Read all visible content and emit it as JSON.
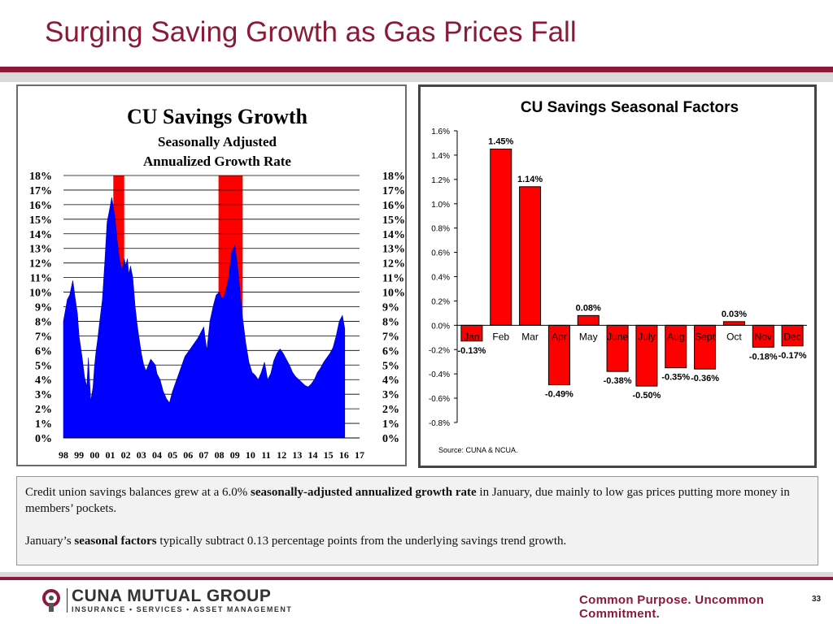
{
  "slide": {
    "title": "Surging Saving Growth as Gas Prices Fall",
    "page_number": "33",
    "tagline": "Common Purpose. Uncommon Commitment.",
    "logo": {
      "name": "CUNA MUTUAL GROUP",
      "sub": "INSURANCE  •  SERVICES  •  ASSET MANAGEMENT"
    },
    "text_box": {
      "p1_before": "Credit union savings balances grew at a 6.0% ",
      "p1_bold": "seasonally-adjusted annualized growth rate",
      "p1_after": " in January, due mainly to low gas prices putting more money in members’ pockets.",
      "p2_before": "January’s ",
      "p2_bold": "seasonal factors",
      "p2_after": " typically subtract 0.13 percentage points from the underlying savings trend growth."
    },
    "colors": {
      "accent": "#8b1a38",
      "area_fill": "#0000ff",
      "recession_fill": "#ff0000",
      "bar_fill": "#ff0000"
    }
  },
  "chart_data": [
    {
      "type": "area",
      "title": "CU Savings Growth",
      "subtitle_lines": [
        "Seasonally Adjusted",
        "Annualized Growth Rate"
      ],
      "x_tick_labels": [
        "98",
        "99",
        "00",
        "01",
        "02",
        "03",
        "04",
        "05",
        "06",
        "07",
        "08",
        "09",
        "10",
        "11",
        "12",
        "13",
        "14",
        "15",
        "16",
        "17"
      ],
      "y_tick_labels": [
        "0%",
        "1%",
        "2%",
        "3%",
        "4%",
        "5%",
        "6%",
        "7%",
        "8%",
        "9%",
        "10%",
        "11%",
        "12%",
        "13%",
        "14%",
        "15%",
        "16%",
        "17%",
        "18%"
      ],
      "xlim": [
        1998,
        2017
      ],
      "ylim": [
        0,
        18
      ],
      "grid": true,
      "recessions": [
        [
          2001.2,
          2001.9
        ],
        [
          2007.95,
          2009.5
        ]
      ],
      "series": [
        {
          "x": [
            1998.0,
            1998.25,
            1998.4,
            1998.6,
            1998.75,
            1998.9,
            1999.0,
            1999.2,
            1999.35,
            1999.5,
            1999.6,
            1999.75,
            1999.9,
            2000.0,
            2000.1,
            2000.2,
            2000.35,
            2000.5,
            2000.65,
            2000.8,
            2000.95,
            2001.1,
            2001.3,
            2001.45,
            2001.6,
            2001.75,
            2001.9,
            2002.0,
            2002.1,
            2002.2,
            2002.3,
            2002.45,
            2002.6,
            2002.75,
            2002.9,
            2003.0,
            2003.15,
            2003.3,
            2003.45,
            2003.6,
            2003.75,
            2003.9,
            2004.0,
            2004.2,
            2004.4,
            2004.6,
            2004.8,
            2005.0,
            2005.2,
            2005.4,
            2005.6,
            2005.8,
            2006.0,
            2006.2,
            2006.4,
            2006.6,
            2006.8,
            2007.0,
            2007.2,
            2007.4,
            2007.6,
            2007.8,
            2008.0,
            2008.2,
            2008.4,
            2008.6,
            2008.8,
            2009.0,
            2009.2,
            2009.35,
            2009.5,
            2009.7,
            2009.9,
            2010.1,
            2010.3,
            2010.5,
            2010.7,
            2010.9,
            2011.1,
            2011.3,
            2011.5,
            2011.7,
            2011.9,
            2012.1,
            2012.3,
            2012.5,
            2012.7,
            2012.9,
            2013.1,
            2013.3,
            2013.5,
            2013.7,
            2013.9,
            2014.1,
            2014.3,
            2014.5,
            2014.7,
            2014.9,
            2015.1,
            2015.3,
            2015.5,
            2015.7,
            2015.9,
            2016.0,
            2016.05
          ],
          "y": [
            8.0,
            9.5,
            9.8,
            10.8,
            9.6,
            8.5,
            7.0,
            5.5,
            4.2,
            3.5,
            5.5,
            2.5,
            3.5,
            5.0,
            6.0,
            6.8,
            8.2,
            9.5,
            12.0,
            14.8,
            15.6,
            16.5,
            15.2,
            13.5,
            12.2,
            11.5,
            12.3,
            11.8,
            12.3,
            11.2,
            11.8,
            11.0,
            9.0,
            7.6,
            6.5,
            5.8,
            5.0,
            4.6,
            5.0,
            5.4,
            5.2,
            5.0,
            4.4,
            4.0,
            3.2,
            2.7,
            2.4,
            3.2,
            3.8,
            4.4,
            5.0,
            5.6,
            5.9,
            6.2,
            6.5,
            6.8,
            7.2,
            7.6,
            6.0,
            8.0,
            9.0,
            9.8,
            10.0,
            9.5,
            10.0,
            11.0,
            12.8,
            13.2,
            11.5,
            9.8,
            8.2,
            6.5,
            5.2,
            4.5,
            4.3,
            4.0,
            4.5,
            5.2,
            4.0,
            4.4,
            5.3,
            5.8,
            6.1,
            5.8,
            5.4,
            5.0,
            4.5,
            4.2,
            4.0,
            3.8,
            3.6,
            3.5,
            3.7,
            4.0,
            4.5,
            4.8,
            5.2,
            5.5,
            5.8,
            6.2,
            7.0,
            8.0,
            8.4,
            7.8,
            7.5
          ]
        }
      ]
    },
    {
      "type": "bar",
      "title": "CU Savings Seasonal Factors",
      "source": "Source: CUNA & NCUA.",
      "categories": [
        "Jan",
        "Feb",
        "Mar",
        "Apr",
        "May",
        "June",
        "July",
        "Aug",
        "Sept",
        "Oct",
        "Nov",
        "Dec"
      ],
      "values": [
        -0.13,
        1.45,
        1.14,
        -0.49,
        0.08,
        -0.38,
        -0.5,
        -0.35,
        -0.36,
        0.03,
        -0.18,
        -0.17
      ],
      "data_labels": [
        "-0.13%",
        "1.45%",
        "1.14%",
        "-0.49%",
        "0.08%",
        "-0.38%",
        "-0.50%",
        "-0.35%",
        "-0.36%",
        "0.03%",
        "-0.18%",
        "-0.17%"
      ],
      "y_tick_labels": [
        "-0.8%",
        "-0.6%",
        "-0.4%",
        "-0.2%",
        "0.0%",
        "0.2%",
        "0.4%",
        "0.6%",
        "0.8%",
        "1.0%",
        "1.2%",
        "1.4%",
        "1.6%"
      ],
      "ylim": [
        -0.8,
        1.6
      ],
      "grid": false
    }
  ]
}
